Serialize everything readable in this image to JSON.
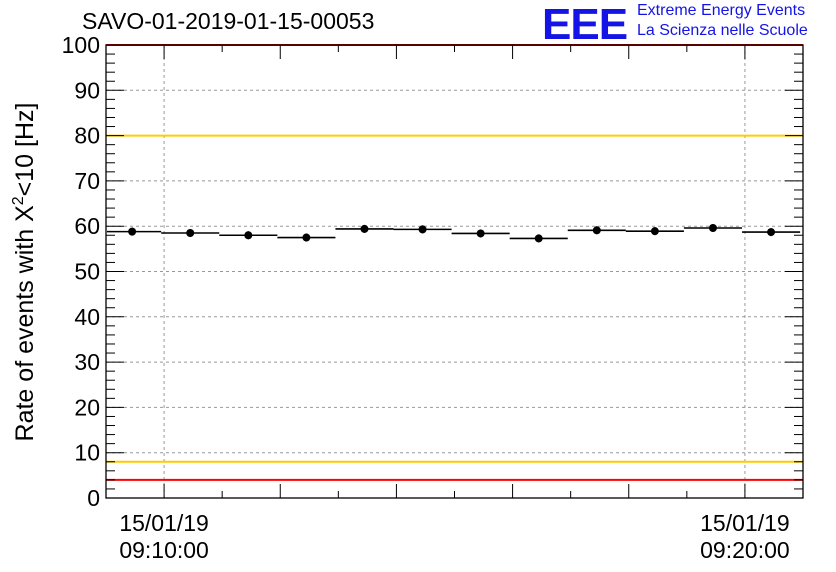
{
  "header": {
    "run_title": "SAVO-01-2019-01-15-00053",
    "logo_text": "EEE",
    "org_line1": "Extreme Energy Events",
    "org_line2": "La Scienza nelle Scuole"
  },
  "chart_data": {
    "type": "scatter",
    "title": "SAVO-01-2019-01-15-00053",
    "ylabel": "Rate of events with X²<10 [Hz]",
    "ylabel_main": "Rate of events with X",
    "ylabel_sup": "2",
    "ylabel_tail": "<10 [Hz]",
    "xlabel": "",
    "ylim": [
      0,
      100
    ],
    "yticks": [
      0,
      10,
      20,
      30,
      40,
      50,
      60,
      70,
      80,
      90,
      100
    ],
    "xlim_minutes": [
      -1.0,
      11.0
    ],
    "xtick_labels": [
      {
        "minute": 0,
        "date": "15/01/19",
        "time": "09:10:00"
      },
      {
        "minute": 10,
        "date": "15/01/19",
        "time": "09:20:00"
      }
    ],
    "bin_width_minutes": 1.0,
    "series": [
      {
        "name": "rate",
        "x_minutes": [
          -0.55,
          0.45,
          1.45,
          2.45,
          3.45,
          4.45,
          5.45,
          6.45,
          7.45,
          8.45,
          9.45,
          10.45
        ],
        "values": [
          58.8,
          58.5,
          58.0,
          57.5,
          59.4,
          59.3,
          58.4,
          57.3,
          59.1,
          58.9,
          59.6,
          58.7
        ]
      }
    ],
    "reference_lines": [
      {
        "name": "upper-red-limit",
        "value": 100,
        "color": "#ff0000"
      },
      {
        "name": "upper-yellow-limit",
        "value": 80,
        "color": "#ffcc00"
      },
      {
        "name": "lower-yellow-limit",
        "value": 8,
        "color": "#ffcc00"
      },
      {
        "name": "lower-red-limit",
        "value": 4,
        "color": "#ff0000"
      }
    ],
    "grid": true
  }
}
